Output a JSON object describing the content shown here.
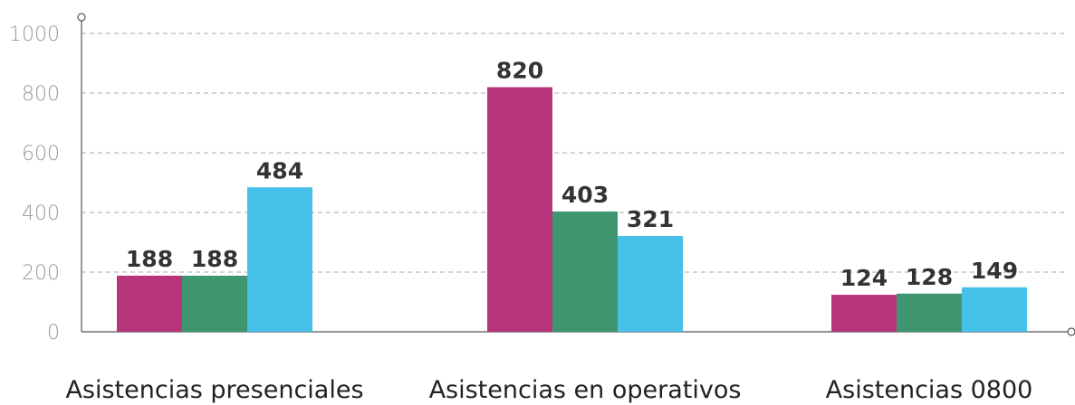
{
  "chart_data": {
    "type": "bar",
    "categories": [
      "Asistencias presenciales",
      "Asistencias en operativos",
      "Asistencias 0800"
    ],
    "series": [
      {
        "color": "#b8357c",
        "values": [
          188,
          820,
          124
        ]
      },
      {
        "color": "#3e9570",
        "values": [
          188,
          403,
          128
        ]
      },
      {
        "color": "#45c0e8",
        "values": [
          484,
          321,
          149
        ]
      }
    ],
    "ylim": [
      0,
      1000
    ],
    "yticks": [
      0,
      200,
      400,
      600,
      800,
      1000
    ],
    "grid": true
  }
}
